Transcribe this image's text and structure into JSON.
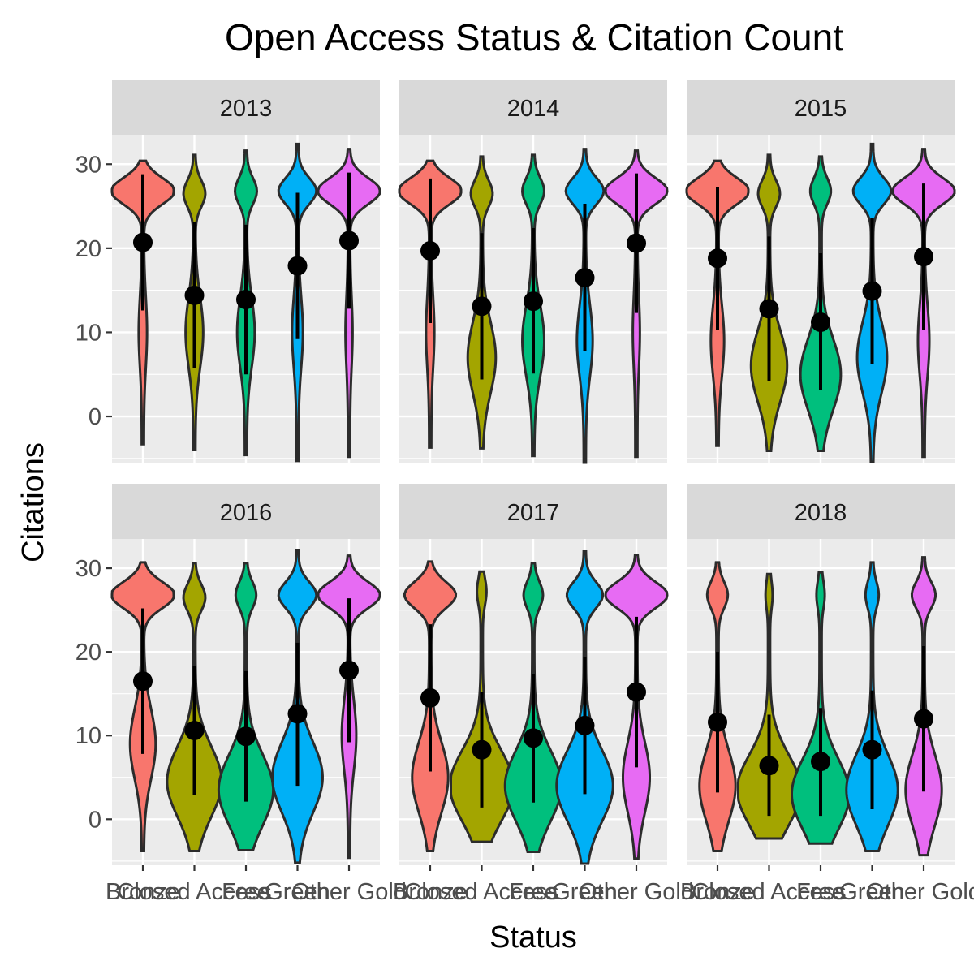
{
  "chart_data": {
    "type": "violin",
    "title": "Open Access Status & Citation Count",
    "xlabel": "Status",
    "ylabel": "Citations",
    "ylim": [
      -5.5,
      33.5
    ],
    "y_ticks": [
      0,
      10,
      20,
      30
    ],
    "grid": true,
    "categories": [
      "Bronze",
      "Closed Access",
      "Free",
      "Green",
      "Other Gold"
    ],
    "category_colors": [
      "#F8766D",
      "#A3A500",
      "#00BF7D",
      "#00B0F6",
      "#E76BF3"
    ],
    "point_color": "#000000",
    "panels": [
      {
        "year": "2013",
        "series": [
          {
            "category": "Bronze",
            "mean": 20.7,
            "low": 12.6,
            "high": 28.8,
            "min": -3.3,
            "max": 30.4,
            "mode_upper": 26.8,
            "dens_upper": 1.0,
            "mode_lower": 10,
            "dens_lower": 0.1
          },
          {
            "category": "Closed Access",
            "mean": 14.4,
            "low": 5.7,
            "high": 23.1,
            "min": -4.0,
            "max": 31.1,
            "mode_upper": 26.5,
            "dens_upper": 0.32,
            "mode_lower": 10,
            "dens_lower": 0.25
          },
          {
            "category": "Free",
            "mean": 13.9,
            "low": 5.0,
            "high": 22.8,
            "min": -4.6,
            "max": 31.6,
            "mode_upper": 26.8,
            "dens_upper": 0.32,
            "mode_lower": 10,
            "dens_lower": 0.25
          },
          {
            "category": "Green",
            "mean": 17.9,
            "low": 9.2,
            "high": 26.6,
            "min": -5.3,
            "max": 32.4,
            "mode_upper": 26.8,
            "dens_upper": 0.58,
            "mode_lower": 10,
            "dens_lower": 0.14
          },
          {
            "category": "Other Gold",
            "mean": 20.9,
            "low": 12.8,
            "high": 29.0,
            "min": -4.8,
            "max": 31.8,
            "mode_upper": 26.8,
            "dens_upper": 0.98,
            "mode_lower": 10,
            "dens_lower": 0.08
          }
        ]
      },
      {
        "year": "2014",
        "series": [
          {
            "category": "Bronze",
            "mean": 19.7,
            "low": 11.1,
            "high": 28.3,
            "min": -3.7,
            "max": 30.4,
            "mode_upper": 26.8,
            "dens_upper": 1.0,
            "mode_lower": 10,
            "dens_lower": 0.1
          },
          {
            "category": "Closed Access",
            "mean": 13.1,
            "low": 4.4,
            "high": 21.8,
            "min": -3.8,
            "max": 30.9,
            "mode_upper": 26.5,
            "dens_upper": 0.32,
            "mode_lower": 7,
            "dens_lower": 0.42
          },
          {
            "category": "Free",
            "mean": 13.7,
            "low": 5.1,
            "high": 22.4,
            "min": -4.7,
            "max": 31.1,
            "mode_upper": 26.8,
            "dens_upper": 0.32,
            "mode_lower": 9,
            "dens_lower": 0.32
          },
          {
            "category": "Green",
            "mean": 16.5,
            "low": 7.8,
            "high": 25.3,
            "min": -5.5,
            "max": 31.8,
            "mode_upper": 26.8,
            "dens_upper": 0.58,
            "mode_lower": 9,
            "dens_lower": 0.22
          },
          {
            "category": "Other Gold",
            "mean": 20.6,
            "low": 12.3,
            "high": 28.9,
            "min": -4.8,
            "max": 31.6,
            "mode_upper": 26.8,
            "dens_upper": 0.98,
            "mode_lower": 10,
            "dens_lower": 0.08
          }
        ]
      },
      {
        "year": "2015",
        "series": [
          {
            "category": "Bronze",
            "mean": 18.8,
            "low": 10.3,
            "high": 27.3,
            "min": -3.5,
            "max": 30.4,
            "mode_upper": 26.8,
            "dens_upper": 1.0,
            "mode_lower": 9,
            "dens_lower": 0.18
          },
          {
            "category": "Closed Access",
            "mean": 12.8,
            "low": 4.2,
            "high": 21.4,
            "min": -4.1,
            "max": 31.1,
            "mode_upper": 26.5,
            "dens_upper": 0.32,
            "mode_lower": 6,
            "dens_lower": 0.55
          },
          {
            "category": "Free",
            "mean": 11.2,
            "low": 3.1,
            "high": 19.4,
            "min": -4.1,
            "max": 30.9,
            "mode_upper": 26.8,
            "dens_upper": 0.3,
            "mode_lower": 5,
            "dens_lower": 0.62
          },
          {
            "category": "Green",
            "mean": 14.9,
            "low": 6.2,
            "high": 23.6,
            "min": -5.4,
            "max": 32.4,
            "mode_upper": 26.8,
            "dens_upper": 0.58,
            "mode_lower": 7,
            "dens_lower": 0.45
          },
          {
            "category": "Other Gold",
            "mean": 19.0,
            "low": 10.3,
            "high": 27.7,
            "min": -4.8,
            "max": 31.8,
            "mode_upper": 26.8,
            "dens_upper": 0.98,
            "mode_lower": 9,
            "dens_lower": 0.15
          }
        ]
      },
      {
        "year": "2016",
        "series": [
          {
            "category": "Bronze",
            "mean": 16.5,
            "low": 7.8,
            "high": 25.2,
            "min": -3.8,
            "max": 30.7,
            "mode_upper": 26.8,
            "dens_upper": 1.0,
            "mode_lower": 9,
            "dens_lower": 0.38
          },
          {
            "category": "Closed Access",
            "mean": 10.6,
            "low": 2.9,
            "high": 18.3,
            "min": -3.8,
            "max": 30.6,
            "mode_upper": 26.5,
            "dens_upper": 0.32,
            "mode_lower": 4.5,
            "dens_lower": 0.85
          },
          {
            "category": "Free",
            "mean": 9.9,
            "low": 2.1,
            "high": 17.7,
            "min": -3.7,
            "max": 30.6,
            "mode_upper": 26.8,
            "dens_upper": 0.3,
            "mode_lower": 3.5,
            "dens_lower": 0.85
          },
          {
            "category": "Green",
            "mean": 12.6,
            "low": 4.0,
            "high": 21.1,
            "min": -5.2,
            "max": 32.1,
            "mode_upper": 26.8,
            "dens_upper": 0.58,
            "mode_lower": 5,
            "dens_lower": 0.78
          },
          {
            "category": "Other Gold",
            "mean": 17.8,
            "low": 9.2,
            "high": 26.4,
            "min": -4.6,
            "max": 31.5,
            "mode_upper": 26.8,
            "dens_upper": 0.98,
            "mode_lower": 10,
            "dens_lower": 0.2
          }
        ]
      },
      {
        "year": "2017",
        "series": [
          {
            "category": "Bronze",
            "mean": 14.5,
            "low": 5.7,
            "high": 23.3,
            "min": -3.8,
            "max": 30.8,
            "mode_upper": 26.8,
            "dens_upper": 0.8,
            "mode_lower": 5,
            "dens_lower": 0.55
          },
          {
            "category": "Closed Access",
            "mean": 8.3,
            "low": 1.4,
            "high": 15.2,
            "min": -2.7,
            "max": 29.6,
            "mode_upper": 27.2,
            "dens_upper": 0.12,
            "mode_lower": 4,
            "dens_lower": 1.0
          },
          {
            "category": "Free",
            "mean": 9.7,
            "low": 2.0,
            "high": 17.4,
            "min": -3.9,
            "max": 30.6,
            "mode_upper": 26.8,
            "dens_upper": 0.28,
            "mode_lower": 4,
            "dens_lower": 0.88
          },
          {
            "category": "Green",
            "mean": 11.2,
            "low": 3.0,
            "high": 19.4,
            "min": -5.3,
            "max": 32.0,
            "mode_upper": 26.8,
            "dens_upper": 0.55,
            "mode_lower": 4,
            "dens_lower": 0.88
          },
          {
            "category": "Other Gold",
            "mean": 15.2,
            "low": 6.2,
            "high": 24.2,
            "min": -4.7,
            "max": 31.6,
            "mode_upper": 26.8,
            "dens_upper": 0.98,
            "mode_lower": 5,
            "dens_lower": 0.4
          }
        ]
      },
      {
        "year": "2018",
        "series": [
          {
            "category": "Bronze",
            "mean": 11.6,
            "low": 3.2,
            "high": 20.0,
            "min": -3.8,
            "max": 30.7,
            "mode_upper": 26.8,
            "dens_upper": 0.3,
            "mode_lower": 4,
            "dens_lower": 0.55
          },
          {
            "category": "Closed Access",
            "mean": 6.4,
            "low": 0.4,
            "high": 12.5,
            "min": -2.3,
            "max": 29.3,
            "mode_upper": 26.8,
            "dens_upper": 0.08,
            "mode_lower": 3.5,
            "dens_lower": 1.0
          },
          {
            "category": "Free",
            "mean": 6.9,
            "low": 0.4,
            "high": 13.3,
            "min": -2.9,
            "max": 29.5,
            "mode_upper": 26.8,
            "dens_upper": 0.1,
            "mode_lower": 3,
            "dens_lower": 0.9
          },
          {
            "category": "Green",
            "mean": 8.3,
            "low": 1.2,
            "high": 15.4,
            "min": -3.8,
            "max": 30.7,
            "mode_upper": 26.8,
            "dens_upper": 0.18,
            "mode_lower": 3.5,
            "dens_lower": 0.8
          },
          {
            "category": "Other Gold",
            "mean": 12.0,
            "low": 3.3,
            "high": 20.7,
            "min": -4.3,
            "max": 31.3,
            "mode_upper": 26.8,
            "dens_upper": 0.35,
            "mode_lower": 3.5,
            "dens_lower": 0.55
          }
        ]
      }
    ]
  }
}
